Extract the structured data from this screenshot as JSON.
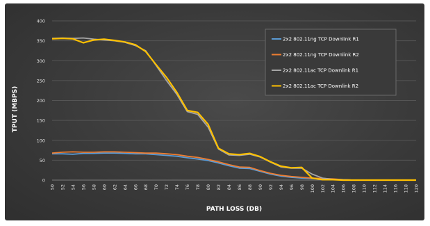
{
  "chart_data": {
    "type": "line",
    "title": "",
    "xlabel": "PATH LOSS (DB)",
    "ylabel": "TPUT (MBPS)",
    "ylim": [
      0,
      400
    ],
    "yticks": [
      0,
      50,
      100,
      150,
      200,
      250,
      300,
      350,
      400
    ],
    "x": [
      50,
      52,
      54,
      56,
      58,
      60,
      62,
      64,
      66,
      68,
      70,
      72,
      74,
      76,
      78,
      80,
      82,
      84,
      86,
      88,
      90,
      92,
      94,
      96,
      98,
      100,
      102,
      104,
      106,
      108,
      110,
      112,
      114,
      116,
      118,
      120
    ],
    "grid": "horizontal",
    "legend_position": "top-right",
    "series": [
      {
        "name": "2x2 802.11ng TCP Downlink R1",
        "color": "#5b9bd5",
        "values": [
          66,
          66,
          65,
          67,
          67,
          68,
          68,
          67,
          66,
          66,
          64,
          62,
          60,
          56,
          53,
          49,
          43,
          36,
          30,
          29,
          22,
          15,
          10,
          7,
          5,
          4,
          3,
          2,
          1,
          0,
          0,
          0,
          0,
          0,
          0,
          0
        ]
      },
      {
        "name": "2x2 802.11ng TCP Downlink R2",
        "color": "#ed7d31",
        "values": [
          68,
          70,
          71,
          70,
          70,
          71,
          71,
          70,
          69,
          68,
          68,
          66,
          64,
          60,
          57,
          52,
          46,
          39,
          33,
          32,
          24,
          17,
          12,
          9,
          7,
          5,
          4,
          3,
          1,
          0,
          0,
          0,
          0,
          0,
          0,
          0
        ]
      },
      {
        "name": "2x2 802.11ac TCP Downlink R1",
        "color": "#a5a5a5",
        "values": [
          356,
          357,
          356,
          357,
          354,
          352,
          350,
          346,
          338,
          325,
          288,
          250,
          215,
          172,
          165,
          133,
          78,
          63,
          62,
          65,
          58,
          45,
          33,
          30,
          30,
          15,
          5,
          2,
          1,
          0,
          0,
          0,
          0,
          0,
          0,
          0
        ]
      },
      {
        "name": "2x2 802.11ac TCP Downlink R2",
        "color": "#ffc000",
        "values": [
          355,
          356,
          355,
          345,
          352,
          354,
          351,
          347,
          340,
          323,
          290,
          258,
          220,
          175,
          170,
          140,
          80,
          66,
          64,
          67,
          59,
          46,
          35,
          31,
          32,
          5,
          1,
          1,
          0,
          0,
          0,
          0,
          0,
          0,
          0,
          0
        ]
      }
    ]
  }
}
